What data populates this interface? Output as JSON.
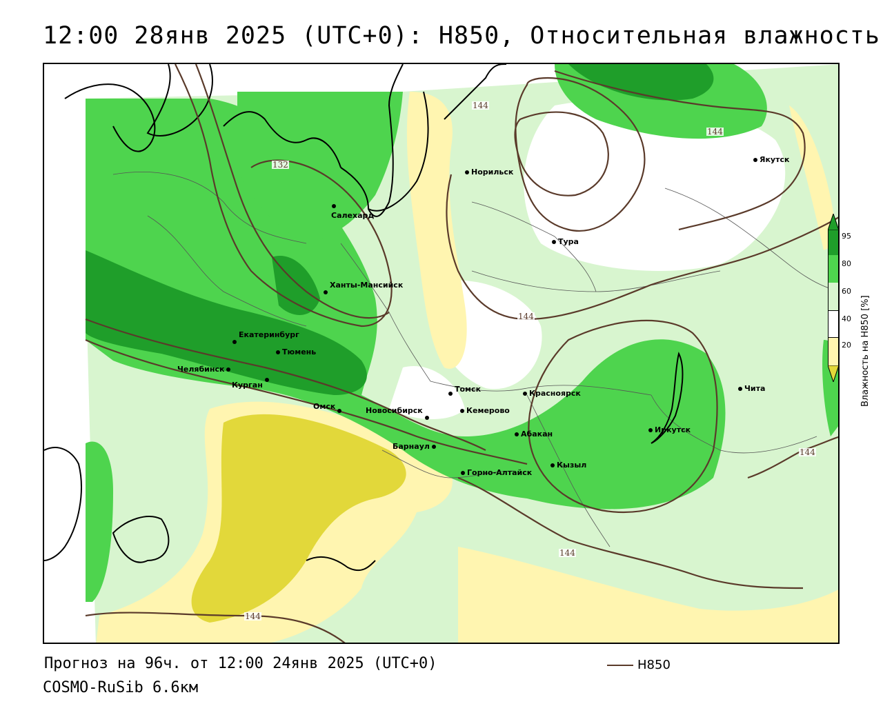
{
  "title": "12:00 28янв 2025 (UTC+0): H850, Относительная влажность",
  "footer": {
    "forecast": "Прогноз на 96ч. от 12:00 24янв 2025 (UTC+0)",
    "model": "COSMO-RuSib 6.6км",
    "line_legend_label": "H850"
  },
  "legend": {
    "title": "Влажность на H850 [%]",
    "ticks": [
      "95",
      "80",
      "60",
      "40",
      "20"
    ],
    "colors": {
      "dark_green": "#1f9e2a",
      "mid_green": "#4ed44e",
      "light_green": "#b5f0a6",
      "white": "#ffffff",
      "light_yellow": "#fff5b0",
      "dark_yellow": "#e2d83a"
    }
  },
  "contour_labels": [
    "132",
    "144",
    "144",
    "144",
    "144",
    "144",
    "144"
  ],
  "cities": [
    "Норильск",
    "Якутск",
    "Салехард",
    "Тура",
    "Ханты-Мансийск",
    "Екатеринбург",
    "Тюмень",
    "Челябинск",
    "Курган",
    "Омск",
    "Новосибирск",
    "Томск",
    "Кемерово",
    "Красноярск",
    "Барнаул",
    "Абакан",
    "Горно-Алтайск",
    "Кызыл",
    "Иркутск",
    "Чита"
  ],
  "colors": {
    "contour": "#5a3a2a",
    "coastline": "#000000",
    "border": "#555555"
  }
}
